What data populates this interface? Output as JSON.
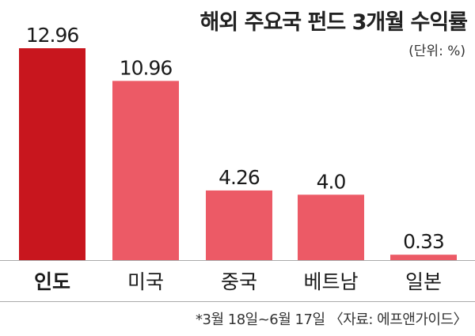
{
  "chart_data": {
    "type": "bar",
    "title": "해외 주요국 펀드 3개월 수익률",
    "unit_note": "(단위: %)",
    "categories": [
      "인도",
      "미국",
      "중국",
      "베트남",
      "일본"
    ],
    "values": [
      12.96,
      10.96,
      4.26,
      4.0,
      0.33
    ],
    "value_labels": [
      "12.96",
      "10.96",
      "4.26",
      "4.0",
      "0.33"
    ],
    "highlight_index": 0,
    "ylim": [
      0,
      12.96
    ],
    "footnote": "*3월 18일~6월 17일 〈자료: 에프앤가이드〉",
    "colors": {
      "highlight": "#c8161e",
      "bar": "#ec5a66",
      "axis": "#aaaaaa",
      "text": "#1a1a1a"
    }
  }
}
